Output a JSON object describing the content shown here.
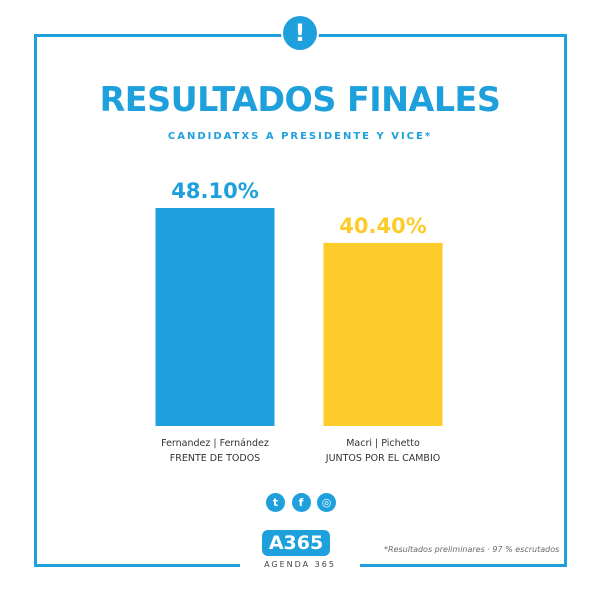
{
  "title": "RESULTADOS FINALES",
  "subtitle": "CANDIDATXS A PRESIDENTE Y VICE*",
  "alert_symbol": "!",
  "colors": {
    "accent": "#1ea0dc",
    "frente": "#1ea0dc",
    "juntos": "#fdcb2a"
  },
  "chart_data": {
    "type": "bar",
    "title": "RESULTADOS FINALES",
    "categories": [
      "Fernandez | Fernández",
      "Macri | Pichetto"
    ],
    "sublabels": [
      "FRENTE DE TODOS",
      "JUNTOS POR EL CAMBIO"
    ],
    "values": [
      48.1,
      40.4
    ],
    "value_labels": [
      "48.10%",
      "40.40%"
    ],
    "colors": [
      "#1ea0dc",
      "#fdcb2a"
    ],
    "ylim": [
      0,
      48.1
    ],
    "grid": false,
    "xlabel": "",
    "ylabel": ""
  },
  "social": [
    {
      "icon": "twitter-icon",
      "glyph": "t"
    },
    {
      "icon": "facebook-icon",
      "glyph": "f"
    },
    {
      "icon": "instagram-icon",
      "glyph": "◎"
    }
  ],
  "logo": {
    "text": "A365",
    "subtext": "AGENDA 365"
  },
  "footnote": "*Resultados preliminares · 97 % escrutados"
}
